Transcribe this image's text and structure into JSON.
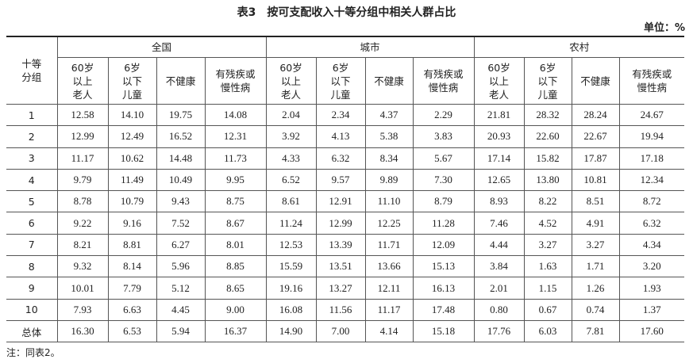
{
  "title": "表3　按可支配收入十等分组中相关人群占比",
  "unit": "单位：%",
  "table": {
    "row_header": "十等\n分组",
    "groups": [
      {
        "name": "全国",
        "columns": [
          "60岁\n以上\n老人",
          "6岁\n以下\n儿童",
          "不健康",
          "有残疾或\n慢性病"
        ]
      },
      {
        "name": "城市",
        "columns": [
          "60岁\n以上\n老人",
          "6岁\n以下\n儿童",
          "不健康",
          "有残疾或\n慢性病"
        ]
      },
      {
        "name": "农村",
        "columns": [
          "60岁\n以上\n老人",
          "6岁\n以下\n儿童",
          "不健康",
          "有残疾或\n慢性病"
        ]
      }
    ],
    "rows": [
      [
        "1",
        "12.58",
        "14.10",
        "19.75",
        "14.08",
        "2.04",
        "2.34",
        "4.37",
        "2.29",
        "21.81",
        "28.32",
        "28.24",
        "24.67"
      ],
      [
        "2",
        "12.99",
        "12.49",
        "16.52",
        "12.31",
        "3.92",
        "4.13",
        "5.38",
        "3.83",
        "20.93",
        "22.60",
        "22.67",
        "19.94"
      ],
      [
        "3",
        "11.17",
        "10.62",
        "14.48",
        "11.73",
        "4.33",
        "6.32",
        "8.34",
        "5.67",
        "17.14",
        "15.82",
        "17.87",
        "17.18"
      ],
      [
        "4",
        "9.79",
        "11.49",
        "10.49",
        "9.95",
        "6.52",
        "9.57",
        "9.89",
        "7.30",
        "12.65",
        "13.80",
        "10.81",
        "12.34"
      ],
      [
        "5",
        "8.78",
        "10.79",
        "9.43",
        "8.75",
        "8.61",
        "12.91",
        "11.10",
        "8.79",
        "8.93",
        "8.22",
        "8.51",
        "8.72"
      ],
      [
        "6",
        "9.22",
        "9.16",
        "7.52",
        "8.67",
        "11.24",
        "12.99",
        "12.25",
        "11.28",
        "7.46",
        "4.52",
        "4.91",
        "6.32"
      ],
      [
        "7",
        "8.21",
        "8.81",
        "6.27",
        "8.01",
        "12.53",
        "13.39",
        "11.71",
        "12.09",
        "4.44",
        "3.27",
        "3.27",
        "4.34"
      ],
      [
        "8",
        "9.32",
        "8.14",
        "5.96",
        "8.85",
        "15.59",
        "13.51",
        "13.66",
        "15.13",
        "3.84",
        "1.63",
        "1.71",
        "3.20"
      ],
      [
        "9",
        "10.01",
        "7.79",
        "5.12",
        "8.65",
        "19.16",
        "13.27",
        "12.11",
        "16.13",
        "2.01",
        "1.15",
        "1.26",
        "1.93"
      ],
      [
        "10",
        "7.93",
        "6.63",
        "4.45",
        "9.00",
        "16.08",
        "11.56",
        "11.17",
        "17.48",
        "0.80",
        "0.67",
        "0.74",
        "1.37"
      ],
      [
        "总体",
        "16.30",
        "6.53",
        "5.94",
        "16.37",
        "14.90",
        "7.00",
        "4.14",
        "15.18",
        "17.76",
        "6.03",
        "7.81",
        "17.60"
      ]
    ]
  },
  "note": "注：同表2。"
}
